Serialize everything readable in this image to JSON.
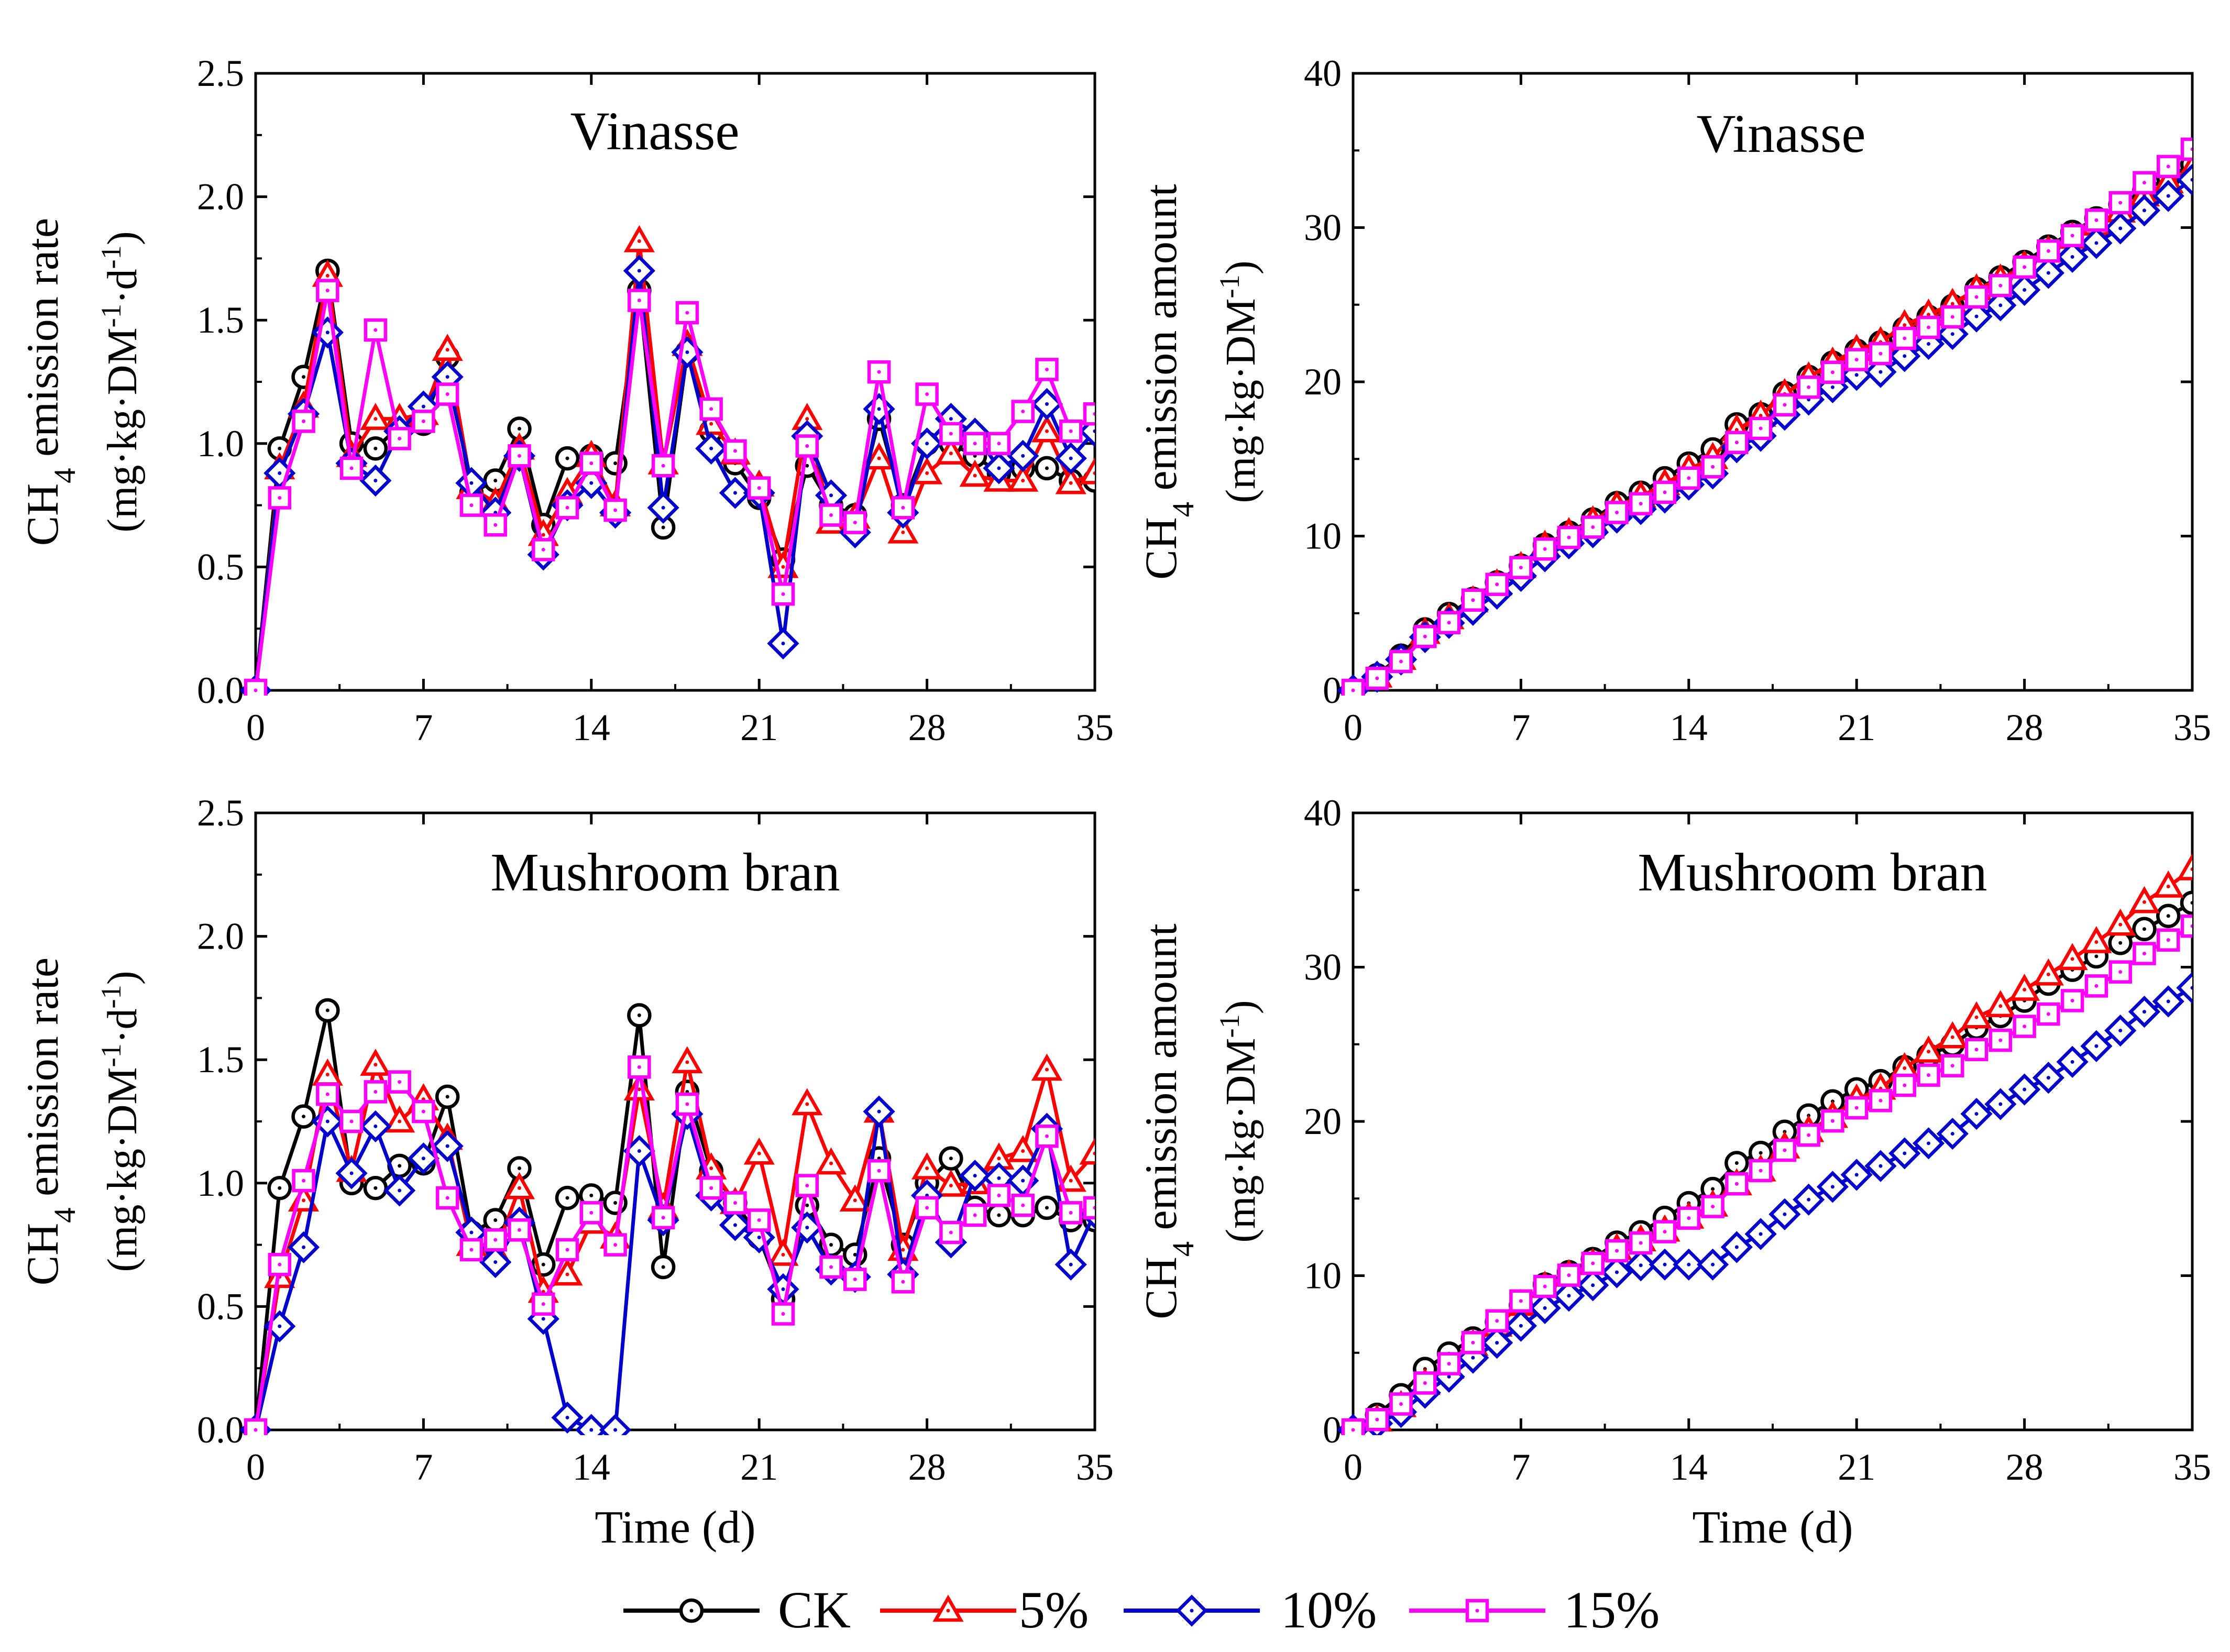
{
  "legend": {
    "placement": "bottom-center",
    "items": [
      {
        "label": "CK",
        "color": "#000000",
        "marker": "circle"
      },
      {
        "label": "5%",
        "color": "#ff0000",
        "marker": "triangle"
      },
      {
        "label": "10%",
        "color": "#0000cc",
        "marker": "diamond"
      },
      {
        "label": "15%",
        "color": "#ff00ff",
        "marker": "square"
      }
    ]
  },
  "chart_data": [
    {
      "type": "line",
      "title": "Vinasse",
      "xlabel": "",
      "ylabel_line1": "CH4 emission rate",
      "ylabel_line2": "(mg·kg·DM-1·d-1)",
      "xlim": [
        0,
        35
      ],
      "ylim": [
        0,
        2.5
      ],
      "xticks": [
        "0",
        "7",
        "14",
        "21",
        "28",
        "35"
      ],
      "yticks": [
        "0.0",
        "0.5",
        "1.0",
        "1.5",
        "2.0",
        "2.5"
      ],
      "x": [
        0,
        1,
        2,
        3,
        4,
        5,
        6,
        7,
        8,
        9,
        10,
        11,
        12,
        13,
        14,
        15,
        16,
        17,
        18,
        19,
        20,
        21,
        22,
        23,
        24,
        25,
        26,
        27,
        28,
        29,
        30,
        31,
        32,
        33,
        34,
        35
      ],
      "series": [
        {
          "name": "CK",
          "values": [
            0,
            0.98,
            1.27,
            1.7,
            1.0,
            0.98,
            1.07,
            1.08,
            1.35,
            0.8,
            0.85,
            1.06,
            0.67,
            0.94,
            0.95,
            0.92,
            1.62,
            0.66,
            1.37,
            1.05,
            0.92,
            0.78,
            0.53,
            0.91,
            0.75,
            0.71,
            1.1,
            0.75,
            1.0,
            1.0,
            0.95,
            0.88,
            0.9,
            0.9,
            0.85,
            0.85
          ]
        },
        {
          "name": "5%",
          "values": [
            0,
            0.9,
            1.15,
            1.68,
            0.95,
            1.1,
            1.1,
            1.12,
            1.38,
            0.82,
            0.76,
            0.98,
            0.63,
            0.8,
            0.95,
            0.75,
            1.82,
            0.92,
            1.4,
            1.08,
            0.96,
            0.83,
            0.5,
            1.1,
            0.68,
            0.7,
            0.94,
            0.64,
            0.88,
            0.96,
            0.87,
            0.85,
            0.85,
            1.05,
            0.84,
            0.88
          ]
        },
        {
          "name": "10%",
          "values": [
            0,
            0.88,
            1.12,
            1.45,
            0.92,
            0.85,
            1.05,
            1.15,
            1.27,
            0.84,
            0.72,
            0.95,
            0.55,
            0.75,
            0.84,
            0.72,
            1.7,
            0.74,
            1.37,
            0.98,
            0.8,
            0.8,
            0.19,
            1.03,
            0.79,
            0.64,
            1.14,
            0.72,
            1.0,
            1.1,
            1.04,
            0.9,
            0.95,
            1.16,
            0.94,
            1.05
          ]
        },
        {
          "name": "15%",
          "values": [
            0,
            0.78,
            1.09,
            1.62,
            0.9,
            1.46,
            1.02,
            1.09,
            1.2,
            0.75,
            0.67,
            0.95,
            0.57,
            0.74,
            0.92,
            0.73,
            1.58,
            0.91,
            1.53,
            1.14,
            0.97,
            0.82,
            0.39,
            0.99,
            0.71,
            0.68,
            1.29,
            0.74,
            1.2,
            1.04,
            1.0,
            1.0,
            1.13,
            1.3,
            1.05,
            1.12
          ]
        }
      ]
    },
    {
      "type": "line",
      "title": "Vinasse",
      "xlabel": "",
      "ylabel_line1": "CH4 emission amount",
      "ylabel_line2": "(mg·kg·DM-1)",
      "xlim": [
        0,
        35
      ],
      "ylim": [
        0,
        40
      ],
      "xticks": [
        "0",
        "7",
        "14",
        "21",
        "28",
        "35"
      ],
      "yticks": [
        "0",
        "10",
        "20",
        "30",
        "40"
      ],
      "x": [
        0,
        1,
        2,
        3,
        4,
        5,
        6,
        7,
        8,
        9,
        10,
        11,
        12,
        13,
        14,
        15,
        16,
        17,
        18,
        19,
        20,
        21,
        22,
        23,
        24,
        25,
        26,
        27,
        28,
        29,
        30,
        31,
        32,
        33,
        34,
        35
      ],
      "series": [
        {
          "name": "CK",
          "values": [
            0,
            0.98,
            2.25,
            3.95,
            4.95,
            5.93,
            7.0,
            8.08,
            9.43,
            10.23,
            11.08,
            12.14,
            12.81,
            13.75,
            14.7,
            15.62,
            17.24,
            17.9,
            19.27,
            20.32,
            21.24,
            22.02,
            22.55,
            23.46,
            24.21,
            24.92,
            26.02,
            26.77,
            27.77,
            28.77,
            29.72,
            30.6,
            31.5,
            32.4,
            33.25,
            34.1
          ]
        },
        {
          "name": "5%",
          "values": [
            0,
            0.9,
            2.05,
            3.73,
            4.68,
            5.78,
            6.88,
            8.0,
            9.38,
            10.2,
            10.96,
            11.94,
            12.57,
            13.37,
            14.32,
            15.07,
            16.89,
            17.81,
            19.21,
            20.29,
            21.25,
            22.08,
            22.58,
            23.68,
            24.36,
            25.06,
            26.0,
            26.64,
            27.52,
            28.48,
            29.35,
            30.2,
            31.05,
            32.1,
            32.94,
            33.82
          ]
        },
        {
          "name": "10%",
          "values": [
            0,
            0.88,
            2.0,
            3.45,
            4.37,
            5.22,
            6.27,
            7.42,
            8.69,
            9.53,
            10.25,
            11.2,
            11.75,
            12.5,
            13.34,
            14.06,
            15.76,
            16.5,
            17.87,
            18.85,
            19.65,
            20.45,
            20.64,
            21.67,
            22.46,
            23.1,
            24.24,
            24.96,
            25.96,
            27.06,
            28.1,
            29.0,
            29.95,
            31.11,
            32.05,
            33.1
          ]
        },
        {
          "name": "15%",
          "values": [
            0,
            0.78,
            1.87,
            3.49,
            4.39,
            5.85,
            6.87,
            7.96,
            9.16,
            9.91,
            10.58,
            11.53,
            12.1,
            12.84,
            13.76,
            14.49,
            16.07,
            16.98,
            18.51,
            19.65,
            20.62,
            21.44,
            21.83,
            22.82,
            23.53,
            24.21,
            25.5,
            26.24,
            27.44,
            28.48,
            29.48,
            30.48,
            31.61,
            32.91,
            33.96,
            35.08
          ]
        }
      ]
    },
    {
      "type": "line",
      "title": "Mushroom bran",
      "xlabel": "Time (d)",
      "ylabel_line1": "CH4 emission rate",
      "ylabel_line2": "(mg·kg·DM-1·d-1)",
      "xlim": [
        0,
        35
      ],
      "ylim": [
        0,
        2.5
      ],
      "xticks": [
        "0",
        "7",
        "14",
        "21",
        "28",
        "35"
      ],
      "yticks": [
        "0.0",
        "0.5",
        "1.0",
        "1.5",
        "2.0",
        "2.5"
      ],
      "x": [
        0,
        1,
        2,
        3,
        4,
        5,
        6,
        7,
        8,
        9,
        10,
        11,
        12,
        13,
        14,
        15,
        16,
        17,
        18,
        19,
        20,
        21,
        22,
        23,
        24,
        25,
        26,
        27,
        28,
        29,
        30,
        31,
        32,
        33,
        34,
        35
      ],
      "series": [
        {
          "name": "CK",
          "values": [
            0,
            0.98,
            1.27,
            1.7,
            1.0,
            0.98,
            1.07,
            1.08,
            1.35,
            0.8,
            0.85,
            1.06,
            0.67,
            0.94,
            0.95,
            0.92,
            1.68,
            0.66,
            1.37,
            1.05,
            0.92,
            0.78,
            0.53,
            0.91,
            0.75,
            0.71,
            1.1,
            0.75,
            1.0,
            1.1,
            0.9,
            0.87,
            0.87,
            0.9,
            0.85,
            0.85
          ]
        },
        {
          "name": "5%",
          "values": [
            0,
            0.62,
            0.93,
            1.44,
            1.05,
            1.48,
            1.25,
            1.34,
            1.18,
            0.75,
            0.72,
            0.98,
            0.56,
            0.63,
            0.84,
            0.78,
            1.38,
            0.9,
            1.49,
            1.06,
            0.92,
            1.12,
            0.71,
            1.32,
            1.08,
            0.93,
            1.29,
            0.73,
            1.06,
            0.99,
            1.0,
            1.1,
            1.13,
            1.46,
            1.01,
            1.12
          ]
        },
        {
          "name": "10%",
          "values": [
            0,
            0.42,
            0.74,
            1.25,
            1.04,
            1.23,
            0.97,
            1.1,
            1.15,
            0.8,
            0.68,
            0.84,
            0.45,
            0.05,
            0.0,
            0.0,
            1.13,
            0.85,
            1.28,
            0.95,
            0.83,
            0.78,
            0.57,
            0.82,
            0.65,
            0.62,
            1.29,
            0.63,
            0.95,
            0.76,
            1.03,
            1.02,
            1.01,
            1.22,
            0.67,
            0.88
          ]
        },
        {
          "name": "15%",
          "values": [
            0,
            0.67,
            1.01,
            1.36,
            1.25,
            1.37,
            1.41,
            1.29,
            0.94,
            0.73,
            0.77,
            0.81,
            0.51,
            0.73,
            0.88,
            0.75,
            1.47,
            0.86,
            1.32,
            0.98,
            0.92,
            0.85,
            0.47,
            0.99,
            0.66,
            0.61,
            1.05,
            0.6,
            0.9,
            0.8,
            0.87,
            0.95,
            0.91,
            1.19,
            0.88,
            0.9
          ]
        }
      ]
    },
    {
      "type": "line",
      "title": "Mushroom bran",
      "xlabel": "Time (d)",
      "ylabel_line1": "CH4 emission amount",
      "ylabel_line2": "(mg·kg·DM-1)",
      "xlim": [
        0,
        35
      ],
      "ylim": [
        0,
        40
      ],
      "xticks": [
        "0",
        "7",
        "14",
        "21",
        "28",
        "35"
      ],
      "yticks": [
        "0",
        "10",
        "20",
        "30",
        "40"
      ],
      "x": [
        0,
        1,
        2,
        3,
        4,
        5,
        6,
        7,
        8,
        9,
        10,
        11,
        12,
        13,
        14,
        15,
        16,
        17,
        18,
        19,
        20,
        21,
        22,
        23,
        24,
        25,
        26,
        27,
        28,
        29,
        30,
        31,
        32,
        33,
        34,
        35
      ],
      "series": [
        {
          "name": "CK",
          "values": [
            0,
            0.98,
            2.25,
            3.95,
            4.95,
            5.93,
            7.0,
            8.08,
            9.43,
            10.23,
            11.08,
            12.14,
            12.81,
            13.75,
            14.7,
            15.62,
            17.3,
            17.96,
            19.33,
            20.38,
            21.3,
            22.08,
            22.61,
            23.52,
            24.27,
            24.98,
            26.08,
            26.83,
            27.83,
            28.93,
            29.83,
            30.7,
            31.57,
            32.47,
            33.32,
            34.17
          ]
        },
        {
          "name": "5%",
          "values": [
            0,
            0.62,
            1.55,
            2.99,
            4.04,
            5.52,
            6.77,
            8.11,
            9.29,
            10.04,
            10.76,
            11.74,
            12.3,
            12.93,
            13.77,
            14.55,
            15.93,
            16.83,
            18.32,
            19.38,
            20.3,
            21.42,
            22.13,
            23.45,
            24.53,
            25.46,
            26.75,
            27.48,
            28.54,
            29.53,
            30.53,
            31.63,
            32.76,
            34.22,
            35.23,
            36.35
          ]
        },
        {
          "name": "10%",
          "values": [
            0,
            0.42,
            1.16,
            2.41,
            3.45,
            4.68,
            5.65,
            6.75,
            7.9,
            8.7,
            9.38,
            10.22,
            10.67,
            10.72,
            10.72,
            10.72,
            11.85,
            12.7,
            13.98,
            14.93,
            15.76,
            16.54,
            17.11,
            17.93,
            18.58,
            19.2,
            20.49,
            21.12,
            22.07,
            22.83,
            23.86,
            24.88,
            25.89,
            27.11,
            27.78,
            28.66
          ]
        },
        {
          "name": "15%",
          "values": [
            0,
            0.67,
            1.68,
            3.04,
            4.29,
            5.66,
            7.07,
            8.36,
            9.3,
            10.03,
            10.8,
            11.61,
            12.12,
            12.85,
            13.73,
            14.48,
            15.95,
            16.81,
            18.13,
            19.11,
            20.03,
            20.88,
            21.35,
            22.34,
            23.0,
            23.61,
            24.66,
            25.26,
            26.16,
            26.96,
            27.83,
            28.78,
            29.69,
            30.88,
            31.76,
            32.66
          ]
        }
      ]
    }
  ]
}
